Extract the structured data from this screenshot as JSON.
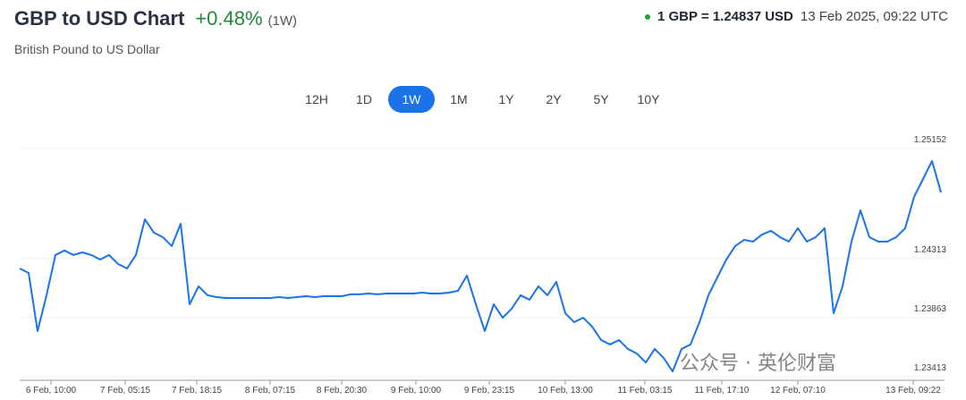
{
  "header": {
    "title": "GBP to USD Chart",
    "change": "+0.48%",
    "period": "(1W)",
    "subtitle": "British Pound to US Dollar",
    "rate": "1 GBP = 1.24837 USD",
    "timestamp": "13 Feb 2025, 09:22 UTC"
  },
  "range_buttons": [
    "12H",
    "1D",
    "1W",
    "1M",
    "1Y",
    "2Y",
    "5Y",
    "10Y"
  ],
  "selected_range": 2,
  "watermark": "公众号 · 英伦财富",
  "chart_data": {
    "type": "line",
    "color": "#1a73e8",
    "grid": true,
    "values": [
      1.24238,
      1.24204,
      1.23761,
      1.24034,
      1.24341,
      1.24375,
      1.24341,
      1.24361,
      1.24341,
      1.24306,
      1.24341,
      1.24272,
      1.24238,
      1.24341,
      1.24613,
      1.24511,
      1.24477,
      1.24409,
      1.24579,
      1.23965,
      1.24102,
      1.24034,
      1.2402,
      1.24013,
      1.24013,
      1.24013,
      1.24013,
      1.24013,
      1.24013,
      1.2402,
      1.24013,
      1.2402,
      1.24027,
      1.2402,
      1.24027,
      1.24027,
      1.24027,
      1.24041,
      1.24041,
      1.24047,
      1.24041,
      1.24047,
      1.24047,
      1.24047,
      1.24047,
      1.24054,
      1.24047,
      1.24047,
      1.24054,
      1.24068,
      1.24184,
      1.23965,
      1.23761,
      1.23965,
      1.23863,
      1.23931,
      1.24034,
      1.24,
      1.24102,
      1.24034,
      1.24136,
      1.23897,
      1.23829,
      1.23863,
      1.23795,
      1.23693,
      1.23659,
      1.23693,
      1.23625,
      1.2359,
      1.23522,
      1.23625,
      1.23556,
      1.23454,
      1.23625,
      1.23659,
      1.23829,
      1.24034,
      1.2417,
      1.24306,
      1.24409,
      1.24456,
      1.24443,
      1.24497,
      1.24525,
      1.24477,
      1.24443,
      1.24545,
      1.24443,
      1.24477,
      1.24545,
      1.23897,
      1.24102,
      1.24443,
      1.24681,
      1.24477,
      1.24443,
      1.24443,
      1.24477,
      1.24545,
      1.24784,
      1.2492,
      1.25057,
      1.24818
    ],
    "xlim": [
      0,
      103.4
    ],
    "xticks": [
      {
        "value": 3.5,
        "label": "6 Feb, 10:00"
      },
      {
        "value": 11.8,
        "label": "7 Feb, 05:15"
      },
      {
        "value": 19.8,
        "label": "7 Feb, 18:15"
      },
      {
        "value": 28,
        "label": "8 Feb, 07:15"
      },
      {
        "value": 36,
        "label": "8 Feb, 20:30"
      },
      {
        "value": 44.3,
        "label": "9 Feb, 10:00"
      },
      {
        "value": 52.5,
        "label": "9 Feb, 23:15"
      },
      {
        "value": 61,
        "label": "10 Feb, 13:00"
      },
      {
        "value": 69.9,
        "label": "11 Feb, 03:15"
      },
      {
        "value": 78.5,
        "label": "11 Feb, 17:10"
      },
      {
        "value": 87,
        "label": "12 Feb, 07:10"
      },
      {
        "value": 99.9,
        "label": "13 Feb, 09:22"
      }
    ],
    "ylim": [
      1.23386,
      1.25329
    ],
    "yticks": [
      1.23413,
      1.23863,
      1.24313,
      1.25152
    ]
  }
}
